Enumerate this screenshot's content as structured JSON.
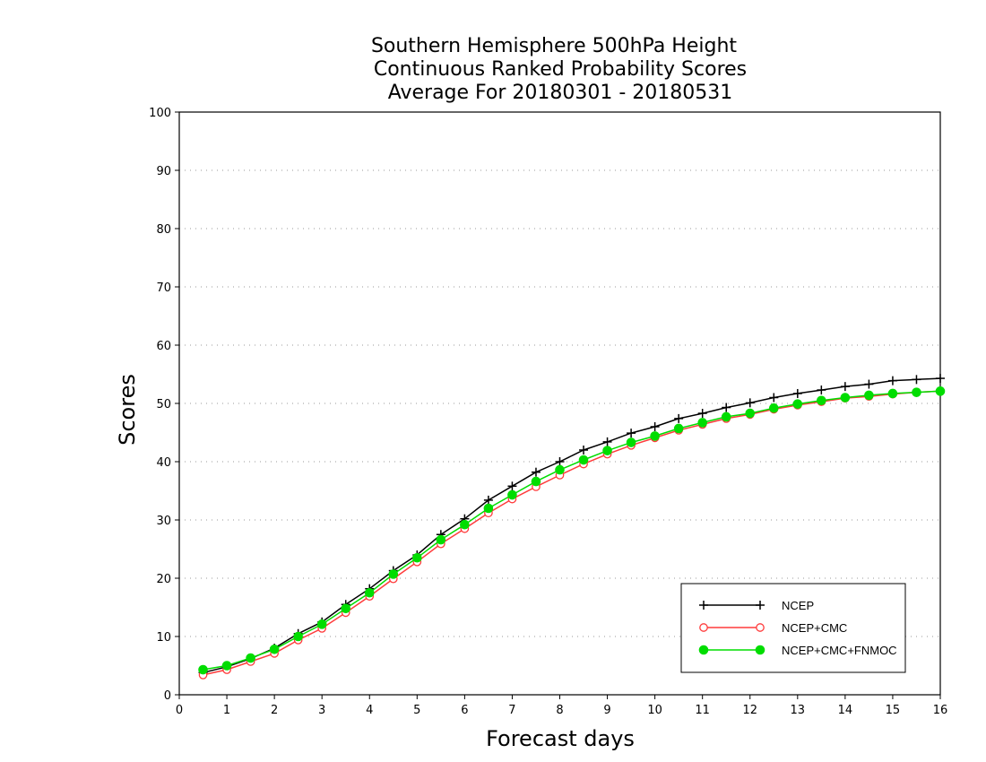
{
  "chart_data": {
    "type": "line",
    "title": [
      "Southern Hemisphere 500hPa Height",
      "Continuous Ranked Probability Scores",
      "Average For 20180301 - 20180531"
    ],
    "xlabel": "Forecast days",
    "ylabel": "Scores",
    "xlim": [
      0,
      16
    ],
    "ylim": [
      0,
      100
    ],
    "xticks": [
      "0",
      "1",
      "2",
      "3",
      "4",
      "5",
      "6",
      "7",
      "8",
      "9",
      "10",
      "11",
      "12",
      "13",
      "14",
      "15",
      "16"
    ],
    "yticks": [
      "0",
      "10",
      "20",
      "30",
      "40",
      "50",
      "60",
      "70",
      "80",
      "90",
      "100"
    ],
    "grid": "horizontal dotted",
    "legend_position": "bottom-right",
    "x": [
      0.5,
      1,
      1.5,
      2,
      2.5,
      3,
      3.5,
      4,
      4.5,
      5,
      5.5,
      6,
      6.5,
      7,
      7.5,
      8,
      8.5,
      9,
      9.5,
      10,
      10.5,
      11,
      11.5,
      12,
      12.5,
      13,
      13.5,
      14,
      14.5,
      15,
      15.5,
      16
    ],
    "series": [
      {
        "name": "NCEP",
        "color": "#000000",
        "marker": "plus",
        "values": [
          3.8,
          4.8,
          6.2,
          8.0,
          10.5,
          12.5,
          15.5,
          18.2,
          21.3,
          24.0,
          27.5,
          30.2,
          33.4,
          35.8,
          38.2,
          40.0,
          42.0,
          43.4,
          44.9,
          46.0,
          47.4,
          48.3,
          49.3,
          50.1,
          51.0,
          51.7,
          52.3,
          52.9,
          53.3,
          53.9,
          54.1,
          54.3
        ]
      },
      {
        "name": "NCEP+CMC",
        "color": "#ff3b3b",
        "marker": "open-circle",
        "values": [
          3.4,
          4.3,
          5.7,
          7.1,
          9.4,
          11.4,
          14.1,
          16.9,
          19.9,
          22.8,
          25.9,
          28.5,
          31.2,
          33.6,
          35.7,
          37.7,
          39.6,
          41.3,
          42.8,
          44.1,
          45.4,
          46.4,
          47.4,
          48.1,
          49.0,
          49.7,
          50.3,
          50.9,
          51.2,
          51.6,
          51.9,
          52.1
        ]
      },
      {
        "name": "NCEP+CMC+FNMOC",
        "color": "#00dd00",
        "marker": "filled-circle",
        "values": [
          4.3,
          5.0,
          6.3,
          7.8,
          10.0,
          12.1,
          14.8,
          17.5,
          20.7,
          23.5,
          26.6,
          29.2,
          32.0,
          34.3,
          36.6,
          38.6,
          40.3,
          41.9,
          43.3,
          44.4,
          45.7,
          46.7,
          47.7,
          48.3,
          49.2,
          49.9,
          50.5,
          51.0,
          51.4,
          51.7,
          51.9,
          52.1
        ]
      }
    ]
  }
}
